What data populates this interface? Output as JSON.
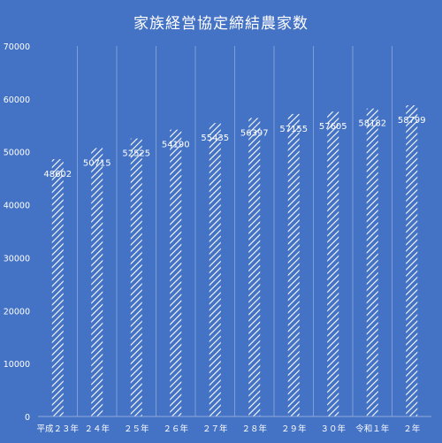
{
  "chart_data": {
    "type": "bar",
    "title": "家族経営協定締結農家数",
    "categories": [
      "平成２３年",
      "２４年",
      "２５年",
      "２６年",
      "２７年",
      "２８年",
      "２９年",
      "３０年",
      "令和１年",
      "２年"
    ],
    "values": [
      48602,
      50715,
      52525,
      54190,
      55435,
      56397,
      57155,
      57605,
      58182,
      58799
    ],
    "yticks": [
      0,
      10000,
      20000,
      30000,
      40000,
      50000,
      60000,
      70000
    ],
    "ylim": [
      0,
      70000
    ],
    "grid": "vertical category separators",
    "legend": "none",
    "bar_fill": "diagonal white hatch"
  },
  "colors": {
    "background": "#4472c4",
    "text": "#ffffff",
    "gridline": "#8fa9dc",
    "hatch": "#ffffff"
  }
}
